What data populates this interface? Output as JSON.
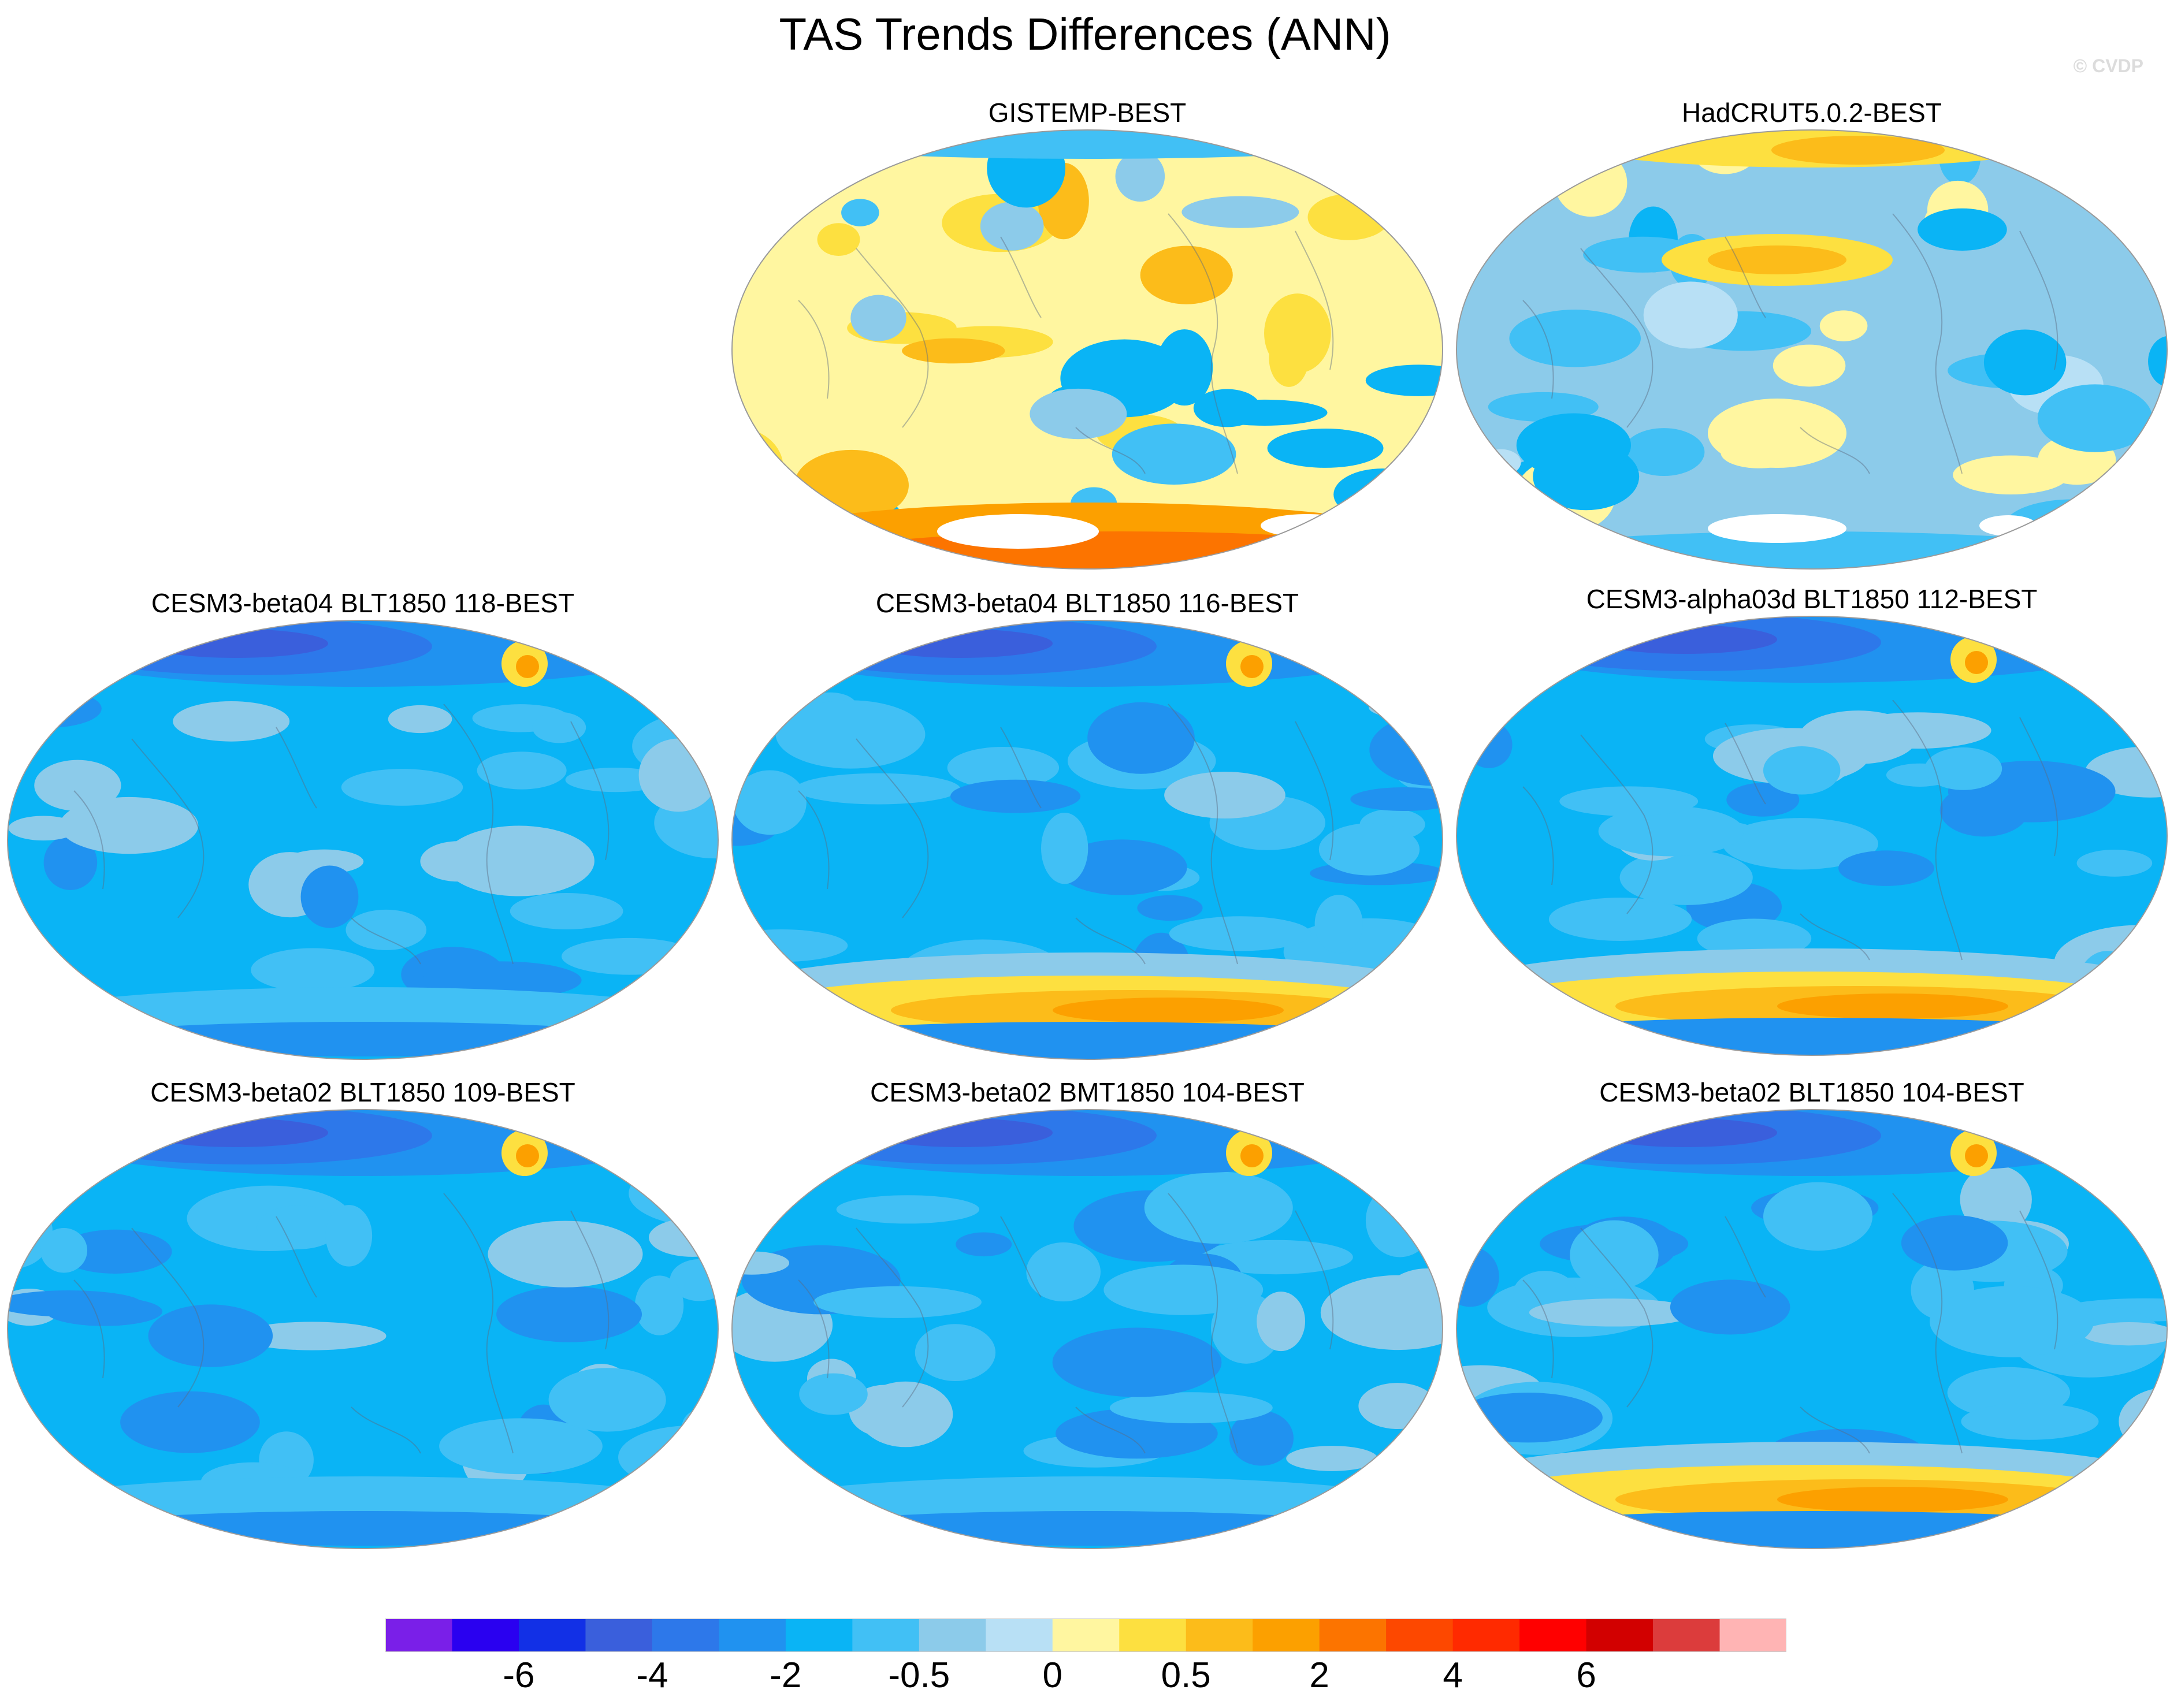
{
  "title": "TAS Trends Differences (ANN)",
  "watermark": "© CVDP",
  "panels": [
    {
      "title": "GISTEMP-BEST",
      "scheme": "warm"
    },
    {
      "title": "HadCRUT5.0.2-BEST",
      "scheme": "mixed"
    },
    {
      "title": "CESM3-beta04 BLT1850 118-BEST",
      "scheme": "cool"
    },
    {
      "title": "CESM3-beta04 BLT1850 116-BEST",
      "scheme": "cool-south-warm"
    },
    {
      "title": "CESM3-alpha03d BLT1850 112-BEST",
      "scheme": "cool-south-warm"
    },
    {
      "title": "CESM3-beta02 BLT1850 109-BEST",
      "scheme": "cool"
    },
    {
      "title": "CESM3-beta02 BMT1850 104-BEST",
      "scheme": "cool"
    },
    {
      "title": "CESM3-beta02 BLT1850 104-BEST",
      "scheme": "cool-south-warm"
    }
  ],
  "colorbar": {
    "colors": [
      "#7a1fe8",
      "#2a00f0",
      "#1230e6",
      "#3a5fdc",
      "#2d78ea",
      "#2092f0",
      "#0ab4f5",
      "#41c0f5",
      "#8ccbea",
      "#b8e0f5",
      "#fff6a0",
      "#fde040",
      "#fcbc1a",
      "#fca000",
      "#fc7400",
      "#fd4800",
      "#ff2a00",
      "#ff0000",
      "#d20000",
      "#dc3c3c",
      "#ffb4b4"
    ],
    "labels": [
      "-6",
      "-4",
      "-2",
      "-0.5",
      "0",
      "0.5",
      "2",
      "4",
      "6"
    ]
  }
}
